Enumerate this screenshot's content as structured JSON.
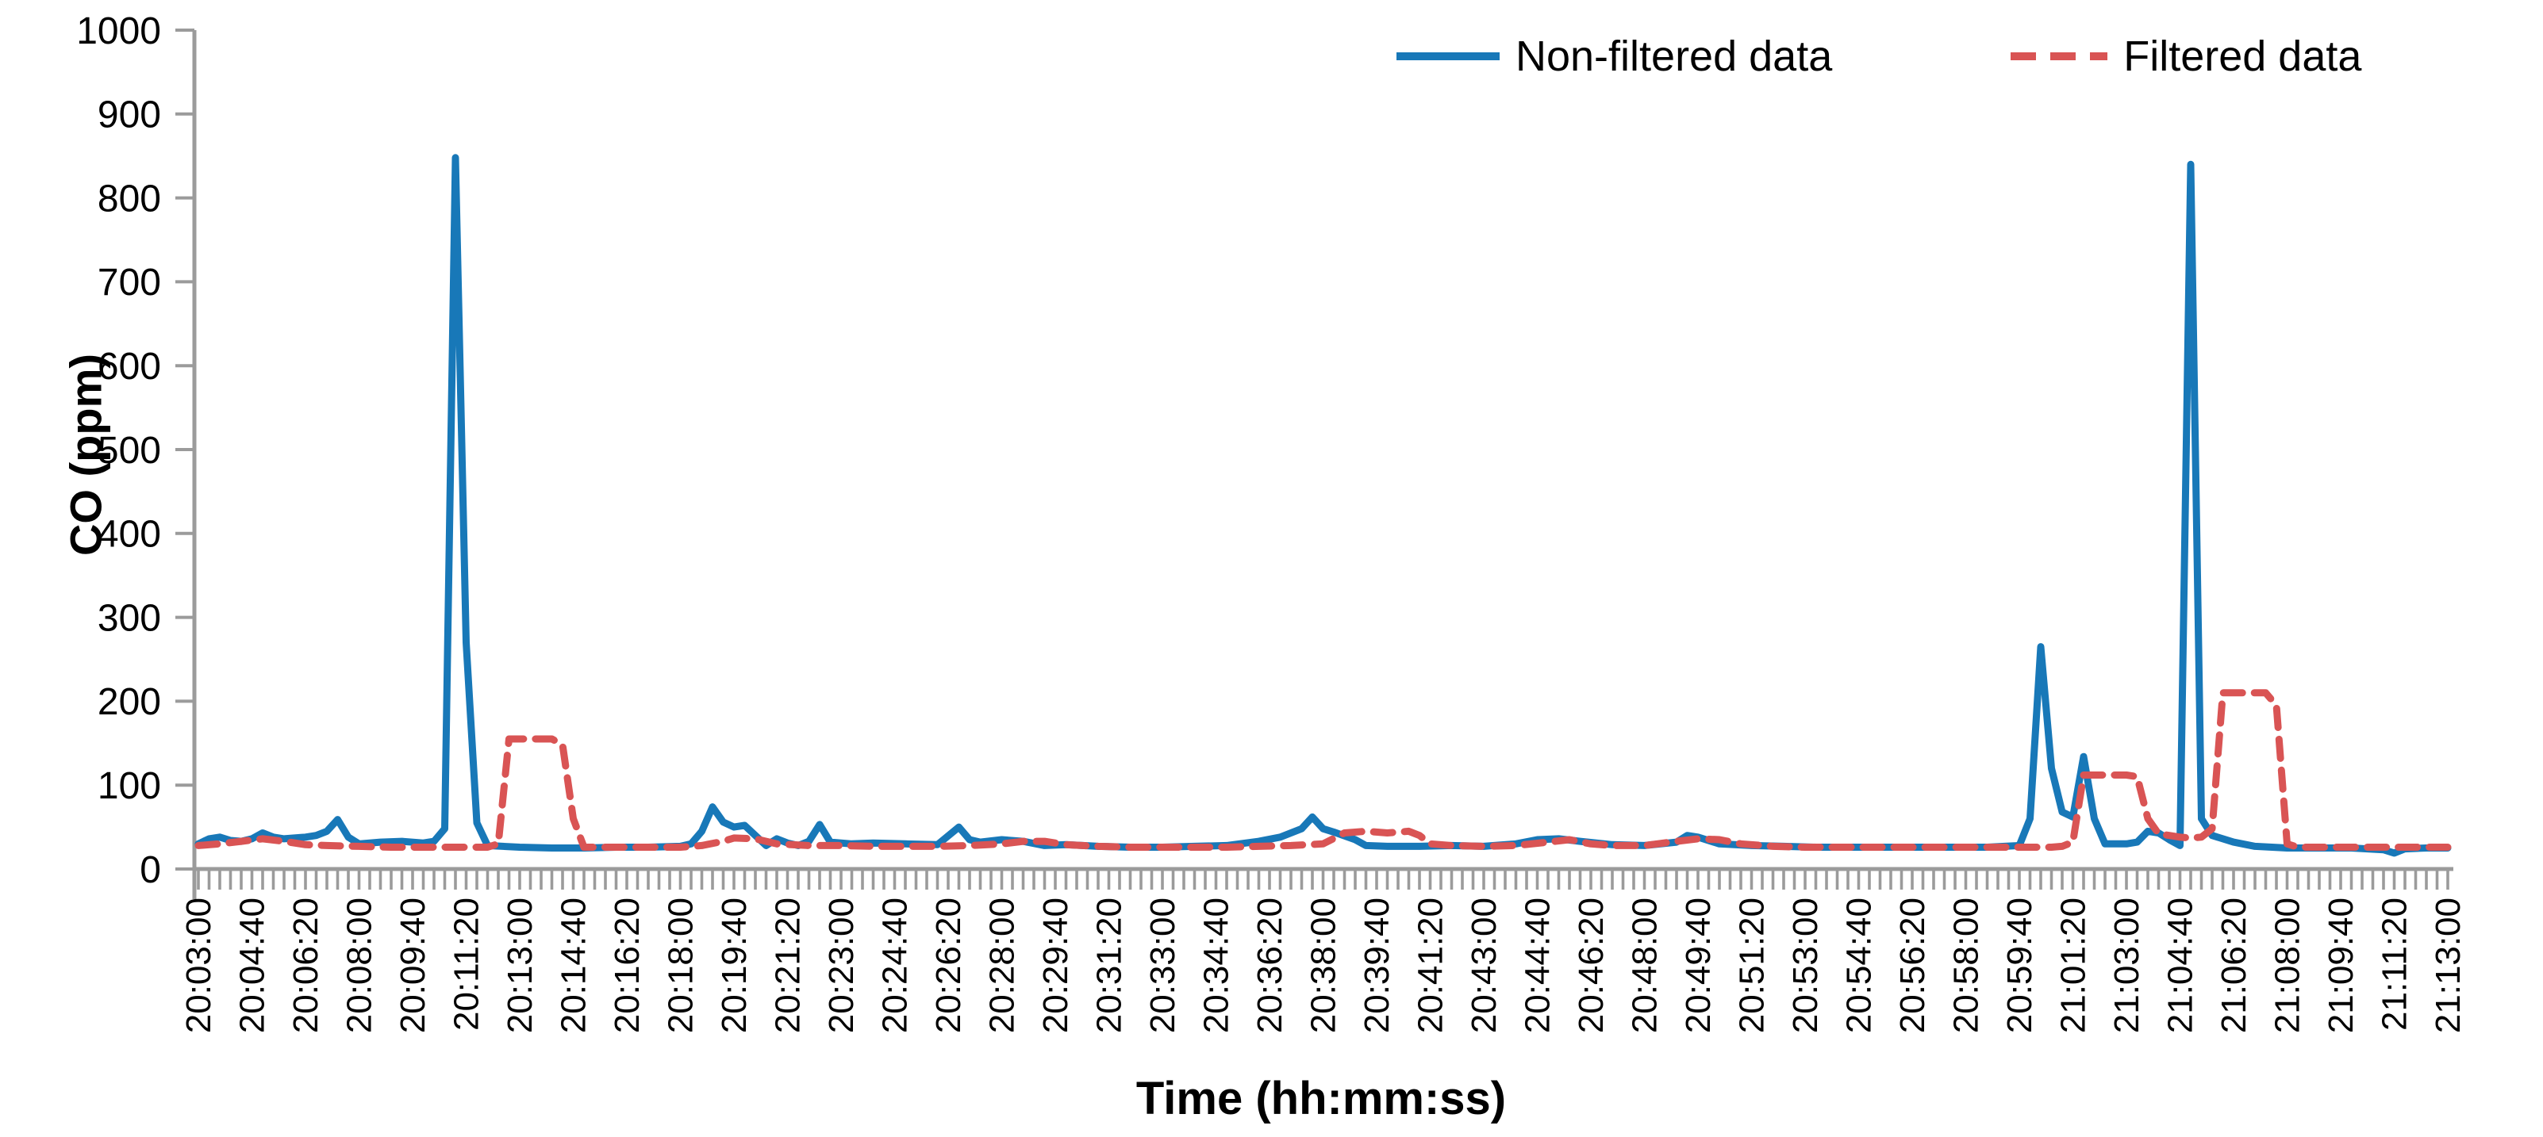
{
  "chart_data": {
    "type": "line",
    "title": "",
    "xlabel": "Time (hh:mm:ss)",
    "ylabel": "CO (ppm)",
    "ylim": [
      0,
      1000
    ],
    "y_ticks": [
      0,
      100,
      200,
      300,
      400,
      500,
      600,
      700,
      800,
      900,
      1000
    ],
    "x_start": "20:03:00",
    "x_end": "21:13:00",
    "x_tick_interval_seconds": 100,
    "x_minor_tick_interval_seconds": 20,
    "grid": false,
    "legend_position": "top-right",
    "axis_color": "#9b9b9b",
    "text_color": "#000000",
    "x_tick_labels": [
      "20:03:00",
      "20:04:40",
      "20:06:20",
      "20:08:00",
      "20:09:40",
      "20:11:20",
      "20:13:00",
      "20:14:40",
      "20:16:20",
      "20:18:00",
      "20:19:40",
      "20:21:20",
      "20:23:00",
      "20:24:40",
      "20:26:20",
      "20:28:00",
      "20:29:40",
      "20:31:20",
      "20:33:00",
      "20:34:40",
      "20:36:20",
      "20:38:00",
      "20:39:40",
      "20:41:20",
      "20:43:00",
      "20:44:40",
      "20:46:20",
      "20:48:00",
      "20:49:40",
      "20:51:20",
      "20:53:00",
      "20:54:40",
      "20:56:20",
      "20:58:00",
      "20:59:40",
      "21:01:20",
      "21:03:00",
      "21:04:40",
      "21:06:20",
      "21:08:00",
      "21:09:40",
      "21:11:20",
      "21:13:00"
    ],
    "series": [
      {
        "name": "Non-filtered data",
        "color": "#1878b8",
        "style": "solid",
        "points": [
          [
            "20:03:00",
            30
          ],
          [
            "20:03:20",
            36
          ],
          [
            "20:03:40",
            38
          ],
          [
            "20:04:00",
            34
          ],
          [
            "20:04:20",
            33
          ],
          [
            "20:04:40",
            36
          ],
          [
            "20:05:00",
            43
          ],
          [
            "20:05:20",
            38
          ],
          [
            "20:05:40",
            36
          ],
          [
            "20:06:20",
            38
          ],
          [
            "20:06:40",
            40
          ],
          [
            "20:07:00",
            45
          ],
          [
            "20:07:20",
            59
          ],
          [
            "20:07:40",
            38
          ],
          [
            "20:08:00",
            30
          ],
          [
            "20:08:40",
            32
          ],
          [
            "20:09:20",
            33
          ],
          [
            "20:10:00",
            31
          ],
          [
            "20:10:20",
            33
          ],
          [
            "20:10:40",
            48
          ],
          [
            "20:11:00",
            848
          ],
          [
            "20:11:20",
            270
          ],
          [
            "20:11:40",
            55
          ],
          [
            "20:12:00",
            28
          ],
          [
            "20:13:00",
            26
          ],
          [
            "20:14:00",
            25
          ],
          [
            "20:15:00",
            25
          ],
          [
            "20:16:00",
            26
          ],
          [
            "20:17:00",
            26
          ],
          [
            "20:18:00",
            27
          ],
          [
            "20:18:20",
            30
          ],
          [
            "20:18:40",
            45
          ],
          [
            "20:19:00",
            74
          ],
          [
            "20:19:20",
            56
          ],
          [
            "20:19:40",
            50
          ],
          [
            "20:20:00",
            52
          ],
          [
            "20:20:20",
            40
          ],
          [
            "20:20:40",
            28
          ],
          [
            "20:21:00",
            36
          ],
          [
            "20:21:20",
            31
          ],
          [
            "20:21:40",
            28
          ],
          [
            "20:22:00",
            33
          ],
          [
            "20:22:20",
            53
          ],
          [
            "20:22:40",
            32
          ],
          [
            "20:23:20",
            30
          ],
          [
            "20:24:00",
            31
          ],
          [
            "20:25:00",
            30
          ],
          [
            "20:26:00",
            29
          ],
          [
            "20:26:40",
            50
          ],
          [
            "20:27:00",
            35
          ],
          [
            "20:27:20",
            32
          ],
          [
            "20:28:00",
            35
          ],
          [
            "20:28:40",
            33
          ],
          [
            "20:29:20",
            28
          ],
          [
            "20:30:00",
            29
          ],
          [
            "20:31:00",
            27
          ],
          [
            "20:32:00",
            26
          ],
          [
            "20:33:00",
            26
          ],
          [
            "20:34:00",
            27
          ],
          [
            "20:35:00",
            28
          ],
          [
            "20:36:00",
            33
          ],
          [
            "20:36:40",
            38
          ],
          [
            "20:37:20",
            48
          ],
          [
            "20:37:40",
            62
          ],
          [
            "20:38:00",
            48
          ],
          [
            "20:38:20",
            44
          ],
          [
            "20:39:00",
            35
          ],
          [
            "20:39:20",
            28
          ],
          [
            "20:40:00",
            27
          ],
          [
            "20:41:00",
            27
          ],
          [
            "20:42:00",
            28
          ],
          [
            "20:43:00",
            27
          ],
          [
            "20:44:00",
            30
          ],
          [
            "20:44:40",
            35
          ],
          [
            "20:45:20",
            36
          ],
          [
            "20:46:00",
            33
          ],
          [
            "20:47:00",
            29
          ],
          [
            "20:48:00",
            28
          ],
          [
            "20:49:00",
            32
          ],
          [
            "20:49:20",
            40
          ],
          [
            "20:49:40",
            38
          ],
          [
            "20:50:20",
            30
          ],
          [
            "20:51:20",
            28
          ],
          [
            "20:52:20",
            27
          ],
          [
            "20:53:20",
            26
          ],
          [
            "20:54:40",
            26
          ],
          [
            "20:56:00",
            26
          ],
          [
            "20:57:20",
            26
          ],
          [
            "20:58:40",
            26
          ],
          [
            "20:59:40",
            28
          ],
          [
            "21:00:00",
            60
          ],
          [
            "21:00:20",
            265
          ],
          [
            "21:00:40",
            120
          ],
          [
            "21:01:00",
            68
          ],
          [
            "21:01:20",
            62
          ],
          [
            "21:01:40",
            134
          ],
          [
            "21:02:00",
            60
          ],
          [
            "21:02:20",
            30
          ],
          [
            "21:03:00",
            30
          ],
          [
            "21:03:20",
            32
          ],
          [
            "21:03:40",
            45
          ],
          [
            "21:04:00",
            43
          ],
          [
            "21:04:20",
            35
          ],
          [
            "21:04:40",
            28
          ],
          [
            "21:05:00",
            840
          ],
          [
            "21:05:20",
            60
          ],
          [
            "21:05:40",
            40
          ],
          [
            "21:06:20",
            32
          ],
          [
            "21:07:00",
            27
          ],
          [
            "21:08:00",
            25
          ],
          [
            "21:09:00",
            25
          ],
          [
            "21:10:00",
            25
          ],
          [
            "21:11:00",
            23
          ],
          [
            "21:11:20",
            19
          ],
          [
            "21:11:40",
            24
          ],
          [
            "21:12:20",
            25
          ],
          [
            "21:13:00",
            25
          ]
        ]
      },
      {
        "name": "Filtered data",
        "color": "#d95454",
        "style": "dashed",
        "points": [
          [
            "20:03:00",
            28
          ],
          [
            "20:03:40",
            30
          ],
          [
            "20:04:20",
            33
          ],
          [
            "20:05:00",
            36
          ],
          [
            "20:05:40",
            33
          ],
          [
            "20:06:20",
            29
          ],
          [
            "20:07:00",
            28
          ],
          [
            "20:08:00",
            27
          ],
          [
            "20:09:00",
            26
          ],
          [
            "20:10:00",
            26
          ],
          [
            "20:11:00",
            26
          ],
          [
            "20:12:00",
            26
          ],
          [
            "20:12:20",
            30
          ],
          [
            "20:12:40",
            155
          ],
          [
            "20:13:40",
            155
          ],
          [
            "20:14:00",
            155
          ],
          [
            "20:14:20",
            148
          ],
          [
            "20:14:40",
            60
          ],
          [
            "20:15:00",
            26
          ],
          [
            "20:16:00",
            26
          ],
          [
            "20:17:00",
            26
          ],
          [
            "20:18:00",
            26
          ],
          [
            "20:18:40",
            28
          ],
          [
            "20:19:20",
            33
          ],
          [
            "20:19:40",
            37
          ],
          [
            "20:20:20",
            36
          ],
          [
            "20:21:00",
            30
          ],
          [
            "20:22:00",
            28
          ],
          [
            "20:23:00",
            28
          ],
          [
            "20:24:00",
            27
          ],
          [
            "20:25:00",
            27
          ],
          [
            "20:26:00",
            27
          ],
          [
            "20:27:00",
            28
          ],
          [
            "20:28:00",
            30
          ],
          [
            "20:28:40",
            33
          ],
          [
            "20:29:20",
            33
          ],
          [
            "20:30:00",
            29
          ],
          [
            "20:31:00",
            27
          ],
          [
            "20:32:00",
            26
          ],
          [
            "20:33:00",
            26
          ],
          [
            "20:34:00",
            26
          ],
          [
            "20:35:00",
            26
          ],
          [
            "20:36:00",
            27
          ],
          [
            "20:37:00",
            28
          ],
          [
            "20:38:00",
            30
          ],
          [
            "20:38:40",
            43
          ],
          [
            "20:39:20",
            45
          ],
          [
            "20:40:00",
            43
          ],
          [
            "20:40:40",
            45
          ],
          [
            "20:41:00",
            40
          ],
          [
            "20:41:20",
            30
          ],
          [
            "20:42:00",
            28
          ],
          [
            "20:43:00",
            27
          ],
          [
            "20:44:00",
            28
          ],
          [
            "20:45:00",
            32
          ],
          [
            "20:45:40",
            35
          ],
          [
            "20:46:20",
            30
          ],
          [
            "20:47:00",
            28
          ],
          [
            "20:48:00",
            28
          ],
          [
            "20:49:00",
            33
          ],
          [
            "20:49:40",
            36
          ],
          [
            "20:50:20",
            35
          ],
          [
            "20:51:00",
            30
          ],
          [
            "20:52:00",
            27
          ],
          [
            "20:53:00",
            26
          ],
          [
            "20:54:00",
            26
          ],
          [
            "20:55:00",
            26
          ],
          [
            "20:56:00",
            26
          ],
          [
            "20:57:00",
            26
          ],
          [
            "20:58:00",
            26
          ],
          [
            "20:59:00",
            26
          ],
          [
            "21:00:00",
            26
          ],
          [
            "21:00:40",
            26
          ],
          [
            "21:01:00",
            27
          ],
          [
            "21:01:20",
            32
          ],
          [
            "21:01:40",
            112
          ],
          [
            "21:02:20",
            112
          ],
          [
            "21:03:00",
            112
          ],
          [
            "21:03:20",
            110
          ],
          [
            "21:03:40",
            60
          ],
          [
            "21:04:00",
            42
          ],
          [
            "21:04:20",
            40
          ],
          [
            "21:04:40",
            38
          ],
          [
            "21:05:00",
            37
          ],
          [
            "21:05:20",
            38
          ],
          [
            "21:05:40",
            48
          ],
          [
            "21:06:00",
            210
          ],
          [
            "21:06:40",
            210
          ],
          [
            "21:07:20",
            210
          ],
          [
            "21:07:40",
            195
          ],
          [
            "21:08:00",
            30
          ],
          [
            "21:08:20",
            26
          ],
          [
            "21:09:00",
            26
          ],
          [
            "21:10:00",
            26
          ],
          [
            "21:11:00",
            26
          ],
          [
            "21:12:00",
            26
          ],
          [
            "21:13:00",
            26
          ]
        ]
      }
    ]
  }
}
